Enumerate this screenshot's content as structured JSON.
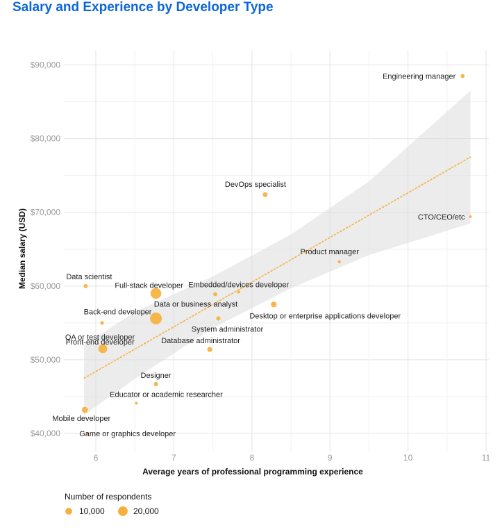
{
  "chart_data": {
    "type": "scatter",
    "title": "Salary and Experience by Developer Type",
    "xlabel": "Average years of professional programming experience",
    "ylabel": "Median salary (USD)",
    "xlim": [
      5.6,
      11.1
    ],
    "ylim": [
      38500,
      92000
    ],
    "x_ticks": [
      6,
      7,
      8,
      9,
      10,
      11
    ],
    "y_ticks": [
      40000,
      50000,
      60000,
      70000,
      80000,
      90000
    ],
    "y_tick_labels": [
      "$40,000",
      "$50,000",
      "$60,000",
      "$70,000",
      "$80,000",
      "$90,000"
    ],
    "grid": true,
    "point_color": "#f5b13d",
    "trend_line": {
      "style": "dotted",
      "x": [
        5.85,
        10.8
      ],
      "y": [
        47500,
        77500
      ]
    },
    "confidence_band": {
      "x": [
        5.85,
        6.5,
        7.5,
        8.5,
        9.5,
        10.8
      ],
      "upper": [
        52000,
        56500,
        61300,
        67000,
        74200,
        86500
      ],
      "lower": [
        42500,
        47400,
        54300,
        59700,
        64200,
        68500
      ]
    },
    "points": [
      {
        "label": "Engineering manager",
        "x": 10.7,
        "y": 88500,
        "respondents": 3500
      },
      {
        "label": "DevOps specialist",
        "x": 8.17,
        "y": 72400,
        "respondents": 5000
      },
      {
        "label": "CTO/CEO/etc",
        "x": 10.8,
        "y": 69400,
        "respondents": 1000
      },
      {
        "label": "Product manager",
        "x": 9.12,
        "y": 63300,
        "respondents": 2000
      },
      {
        "label": "Data scientist",
        "x": 5.87,
        "y": 60000,
        "respondents": 3500
      },
      {
        "label": "Full-stack developer",
        "x": 6.77,
        "y": 59000,
        "respondents": 25000
      },
      {
        "label": "Embedded/devices developer",
        "x": 7.83,
        "y": 59200,
        "respondents": 2000
      },
      {
        "label": "Data or business analyst",
        "x": 7.53,
        "y": 58900,
        "respondents": 3500
      },
      {
        "label": "Desktop or enterprise applications developer",
        "x": 8.28,
        "y": 57500,
        "respondents": 7000
      },
      {
        "label": "Back-end developer",
        "x": 6.77,
        "y": 55600,
        "respondents": 30000
      },
      {
        "label": "System administrator",
        "x": 7.57,
        "y": 55600,
        "respondents": 4000
      },
      {
        "label": "QA or test developer",
        "x": 6.08,
        "y": 55000,
        "respondents": 3000
      },
      {
        "label": "Front-end developer",
        "x": 6.09,
        "y": 51500,
        "respondents": 17000
      },
      {
        "label": "Database administrator",
        "x": 7.46,
        "y": 51400,
        "respondents": 5500
      },
      {
        "label": "Designer",
        "x": 6.77,
        "y": 46700,
        "respondents": 4000
      },
      {
        "label": "Educator or academic researcher",
        "x": 6.52,
        "y": 44100,
        "respondents": 1000
      },
      {
        "label": "Mobile developer",
        "x": 5.86,
        "y": 43200,
        "respondents": 8000
      },
      {
        "label": "Game or graphics developer",
        "x": 5.89,
        "y": 40000,
        "respondents": 1500
      }
    ],
    "legend": {
      "title": "Number of respondents",
      "items": [
        {
          "label": "10,000",
          "respondents": 10000
        },
        {
          "label": "20,000",
          "respondents": 20000
        }
      ]
    }
  }
}
